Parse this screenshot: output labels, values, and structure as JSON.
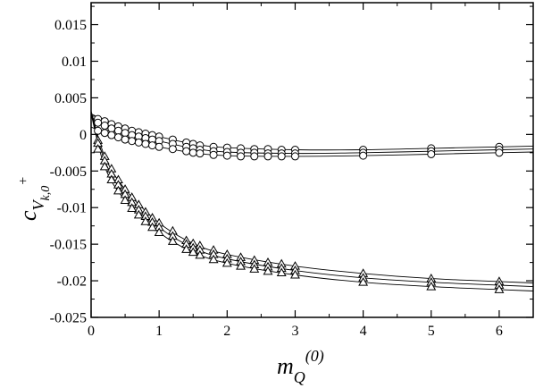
{
  "chart_data": {
    "type": "scatter",
    "xlabel": {
      "main": "m",
      "sub": "Q",
      "sup": "(0)"
    },
    "ylabel": {
      "main": "c",
      "sub1": "V",
      "sub2": "k,0",
      "sup": "+"
    },
    "xlim": [
      0,
      6.5
    ],
    "ylim": [
      -0.025,
      0.018
    ],
    "xticks": [
      0,
      1,
      2,
      3,
      4,
      5,
      6
    ],
    "xtick_labels": [
      "0",
      "1",
      "2",
      "3",
      "4",
      "5",
      "6"
    ],
    "yticks": [
      -0.025,
      -0.02,
      -0.015,
      -0.01,
      -0.005,
      0,
      0.005,
      0.01,
      0.015
    ],
    "ytick_labels": [
      "-0.025",
      "-0.02",
      "-0.015",
      "-0.01",
      "-0.005",
      "0",
      "0.005",
      "0.01",
      "0.015"
    ],
    "grid": false,
    "series": [
      {
        "marker": "circle",
        "x": [
          0.1,
          0.2,
          0.3,
          0.4,
          0.5,
          0.6,
          0.7,
          0.8,
          0.9,
          1.0,
          1.2,
          1.4,
          1.5,
          1.6,
          1.8,
          2.0,
          2.2,
          2.4,
          2.6,
          2.8,
          3.0,
          4.0,
          5.0,
          6.0
        ],
        "y": [
          0.0021,
          0.0018,
          0.0014,
          0.0011,
          0.0008,
          0.0005,
          0.0003,
          0.0001,
          -0.0001,
          -0.0003,
          -0.0007,
          -0.0011,
          -0.0013,
          -0.0015,
          -0.0017,
          -0.0018,
          -0.0019,
          -0.002,
          -0.002,
          -0.0021,
          -0.0021,
          -0.0021,
          -0.0019,
          -0.0017
        ],
        "curve": [
          [
            0,
            0.0028
          ],
          [
            0.5,
            0.0008
          ],
          [
            1,
            -0.0003
          ],
          [
            1.5,
            -0.0013
          ],
          [
            2,
            -0.0018
          ],
          [
            3,
            -0.0021
          ],
          [
            4,
            -0.0021
          ],
          [
            5,
            -0.0019
          ],
          [
            6,
            -0.0017
          ],
          [
            6.5,
            -0.0016
          ]
        ]
      },
      {
        "marker": "circle",
        "x": [
          0.1,
          0.2,
          0.3,
          0.4,
          0.5,
          0.6,
          0.7,
          0.8,
          0.9,
          1.0,
          1.2,
          1.4,
          1.5,
          1.6,
          1.8,
          2.0,
          2.2,
          2.4,
          2.6,
          2.8,
          3.0,
          4.0,
          5.0,
          6.0
        ],
        "y": [
          0.0016,
          0.0012,
          0.0008,
          0.0005,
          0.0002,
          -0.0001,
          -0.0003,
          -0.0005,
          -0.0007,
          -0.0009,
          -0.0013,
          -0.0017,
          -0.0019,
          -0.0021,
          -0.0023,
          -0.0024,
          -0.0025,
          -0.0025,
          -0.0026,
          -0.0026,
          -0.0026,
          -0.0025,
          -0.0023,
          -0.0021
        ],
        "curve": [
          [
            0,
            0.0023
          ],
          [
            0.5,
            0.0002
          ],
          [
            1,
            -0.0009
          ],
          [
            1.5,
            -0.0019
          ],
          [
            2,
            -0.0024
          ],
          [
            3,
            -0.0026
          ],
          [
            4,
            -0.0025
          ],
          [
            5,
            -0.0023
          ],
          [
            6,
            -0.0021
          ],
          [
            6.5,
            -0.002
          ]
        ]
      },
      {
        "marker": "circle",
        "x": [
          0.1,
          0.2,
          0.3,
          0.4,
          0.5,
          0.6,
          0.7,
          0.8,
          0.9,
          1.0,
          1.2,
          1.4,
          1.5,
          1.6,
          1.8,
          2.0,
          2.2,
          2.4,
          2.6,
          2.8,
          3.0,
          4.0,
          5.0,
          6.0
        ],
        "y": [
          0.0005,
          0.0002,
          -0.0001,
          -0.0004,
          -0.0007,
          -0.0009,
          -0.0011,
          -0.0013,
          -0.0015,
          -0.0017,
          -0.002,
          -0.0023,
          -0.0025,
          -0.0026,
          -0.0028,
          -0.0029,
          -0.003,
          -0.003,
          -0.003,
          -0.003,
          -0.003,
          -0.0029,
          -0.0027,
          -0.0025
        ],
        "curve": [
          [
            0,
            0.001
          ],
          [
            0.5,
            -0.0007
          ],
          [
            1,
            -0.0017
          ],
          [
            1.5,
            -0.0025
          ],
          [
            2,
            -0.0029
          ],
          [
            3,
            -0.003
          ],
          [
            4,
            -0.0029
          ],
          [
            5,
            -0.0027
          ],
          [
            6,
            -0.0025
          ],
          [
            6.5,
            -0.0024
          ]
        ]
      },
      {
        "marker": "triangle",
        "x": [
          0.1,
          0.2,
          0.3,
          0.4,
          0.5,
          0.6,
          0.7,
          0.8,
          0.9,
          1.0,
          1.2,
          1.4,
          1.5,
          1.6,
          1.8,
          2.0,
          2.2,
          2.4,
          2.6,
          2.8,
          3.0,
          4.0,
          5.0,
          6.0
        ],
        "y": [
          -0.0008,
          -0.003,
          -0.0047,
          -0.0062,
          -0.0075,
          -0.0086,
          -0.0096,
          -0.0106,
          -0.0114,
          -0.0121,
          -0.0132,
          -0.0145,
          -0.0149,
          -0.0152,
          -0.0158,
          -0.0164,
          -0.0168,
          -0.0172,
          -0.0175,
          -0.0177,
          -0.018,
          -0.019,
          -0.0197,
          -0.0201
        ],
        "curve": [
          [
            0,
            0.0032
          ],
          [
            0.2,
            -0.003
          ],
          [
            0.5,
            -0.0075
          ],
          [
            1,
            -0.0121
          ],
          [
            1.5,
            -0.0149
          ],
          [
            2,
            -0.0164
          ],
          [
            3,
            -0.018
          ],
          [
            4,
            -0.019
          ],
          [
            5,
            -0.0197
          ],
          [
            6,
            -0.0201
          ],
          [
            6.5,
            -0.0203
          ]
        ]
      },
      {
        "marker": "triangle",
        "x": [
          0.1,
          0.2,
          0.3,
          0.4,
          0.5,
          0.6,
          0.7,
          0.8,
          0.9,
          1.0,
          1.2,
          1.4,
          1.5,
          1.6,
          1.8,
          2.0,
          2.2,
          2.4,
          2.6,
          2.8,
          3.0,
          4.0,
          5.0,
          6.0
        ],
        "y": [
          -0.0012,
          -0.0036,
          -0.0054,
          -0.0069,
          -0.0082,
          -0.0093,
          -0.0103,
          -0.0112,
          -0.012,
          -0.0127,
          -0.0139,
          -0.015,
          -0.0155,
          -0.0158,
          -0.0164,
          -0.017,
          -0.0174,
          -0.0178,
          -0.0181,
          -0.0183,
          -0.0186,
          -0.0196,
          -0.0202,
          -0.0206
        ],
        "curve": [
          [
            0,
            0.003
          ],
          [
            0.2,
            -0.0036
          ],
          [
            0.5,
            -0.0082
          ],
          [
            1,
            -0.0127
          ],
          [
            1.5,
            -0.0155
          ],
          [
            2,
            -0.017
          ],
          [
            3,
            -0.0186
          ],
          [
            4,
            -0.0196
          ],
          [
            5,
            -0.0202
          ],
          [
            6,
            -0.0206
          ],
          [
            6.5,
            -0.0208
          ]
        ]
      },
      {
        "marker": "triangle",
        "x": [
          0.1,
          0.2,
          0.3,
          0.4,
          0.5,
          0.6,
          0.7,
          0.8,
          0.9,
          1.0,
          1.2,
          1.4,
          1.5,
          1.6,
          1.8,
          2.0,
          2.2,
          2.4,
          2.6,
          2.8,
          3.0,
          4.0,
          5.0,
          6.0
        ],
        "y": [
          -0.002,
          -0.0044,
          -0.0062,
          -0.0077,
          -0.009,
          -0.0101,
          -0.011,
          -0.0119,
          -0.0127,
          -0.0134,
          -0.0146,
          -0.0157,
          -0.0161,
          -0.0165,
          -0.0171,
          -0.0176,
          -0.018,
          -0.0184,
          -0.0187,
          -0.0189,
          -0.0192,
          -0.0202,
          -0.0208,
          -0.0212
        ],
        "curve": [
          [
            0,
            0.0028
          ],
          [
            0.2,
            -0.0044
          ],
          [
            0.5,
            -0.009
          ],
          [
            1,
            -0.0134
          ],
          [
            1.5,
            -0.0161
          ],
          [
            2,
            -0.0176
          ],
          [
            3,
            -0.0192
          ],
          [
            4,
            -0.0202
          ],
          [
            5,
            -0.0208
          ],
          [
            6,
            -0.0212
          ],
          [
            6.5,
            -0.0214
          ]
        ]
      }
    ]
  }
}
